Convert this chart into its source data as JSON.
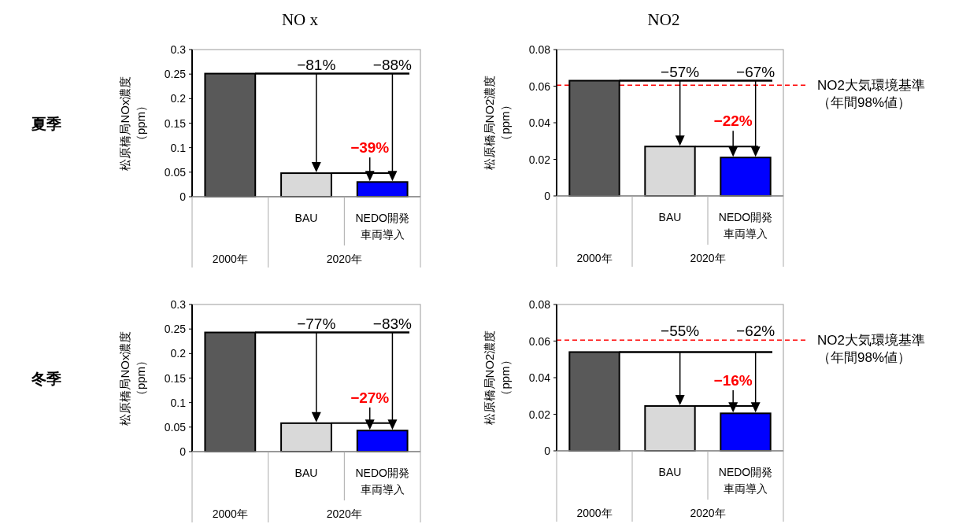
{
  "chart_data": [
    {
      "type": "bar",
      "title": "NO x",
      "ylabel": "松原橋局NOx濃度（ppm）",
      "categories": [
        null,
        "BAU",
        "NEDO開発車両導入"
      ],
      "values": [
        0.251,
        0.048,
        0.03
      ],
      "colors": [
        "#595959",
        "#d9d9d9",
        "#0000ff"
      ],
      "ylim": [
        0,
        0.3
      ],
      "yticks": [
        0,
        0.05,
        0.1,
        0.15,
        0.2,
        0.25,
        0.3
      ],
      "annotations": [
        "夏季",
        "2000年",
        "2020年",
        "−81%",
        "−88%",
        {
          "text": "−39%",
          "x": "NEDO開発車両導入",
          "y": 0.03
        }
      ]
    },
    {
      "type": "bar",
      "title": "NO2",
      "ylabel": "松原橋局NO2濃度（ppm）",
      "categories": [
        null,
        "BAU",
        "NEDO開発車両導入"
      ],
      "values": [
        0.063,
        0.027,
        0.021
      ],
      "colors": [
        "#595959",
        "#d9d9d9",
        "#0000ff"
      ],
      "ylim": [
        0,
        0.08
      ],
      "yticks": [
        0,
        0.02,
        0.04,
        0.06,
        0.08
      ],
      "ref_lines": [
        {
          "axis": "y",
          "value": 0.0605,
          "label": "NO2大気環境基準（年間98%値）",
          "color": "#ff0000",
          "line_style": "dashed"
        }
      ],
      "annotations": [
        "2000年",
        "2020年",
        "−57%",
        "−67%",
        {
          "text": "−22%",
          "x": "NEDO開発車両導入",
          "y": 0.021
        }
      ]
    },
    {
      "type": "bar",
      "ylabel": "松原橋局NOx濃度（ppm）",
      "categories": [
        null,
        "BAU",
        "NEDO開発車両導入"
      ],
      "values": [
        0.243,
        0.058,
        0.043
      ],
      "colors": [
        "#595959",
        "#d9d9d9",
        "#0000ff"
      ],
      "ylim": [
        0,
        0.3
      ],
      "yticks": [
        0,
        0.05,
        0.1,
        0.15,
        0.2,
        0.25,
        0.3
      ],
      "annotations": [
        "冬季",
        "2000年",
        "2020年",
        "−77%",
        "−83%",
        {
          "text": "−27%",
          "x": "NEDO開発車両導入",
          "y": 0.043
        }
      ]
    },
    {
      "type": "bar",
      "ylabel": "松原橋局NO2濃度（ppm）",
      "categories": [
        null,
        "BAU",
        "NEDO開発車両導入"
      ],
      "values": [
        0.054,
        0.0245,
        0.0205
      ],
      "colors": [
        "#595959",
        "#d9d9d9",
        "#0000ff"
      ],
      "ylim": [
        0,
        0.08
      ],
      "yticks": [
        0,
        0.02,
        0.04,
        0.06,
        0.08
      ],
      "ref_lines": [
        {
          "axis": "y",
          "value": 0.0605,
          "label": "NO2大気環境基準（年間98%値）",
          "color": "#ff0000",
          "line_style": "dashed"
        }
      ],
      "annotations": [
        "2000年",
        "2020年",
        "−55%",
        "−62%",
        {
          "text": "−16%",
          "x": "NEDO開発車両導入",
          "y": 0.0205
        }
      ]
    }
  ]
}
